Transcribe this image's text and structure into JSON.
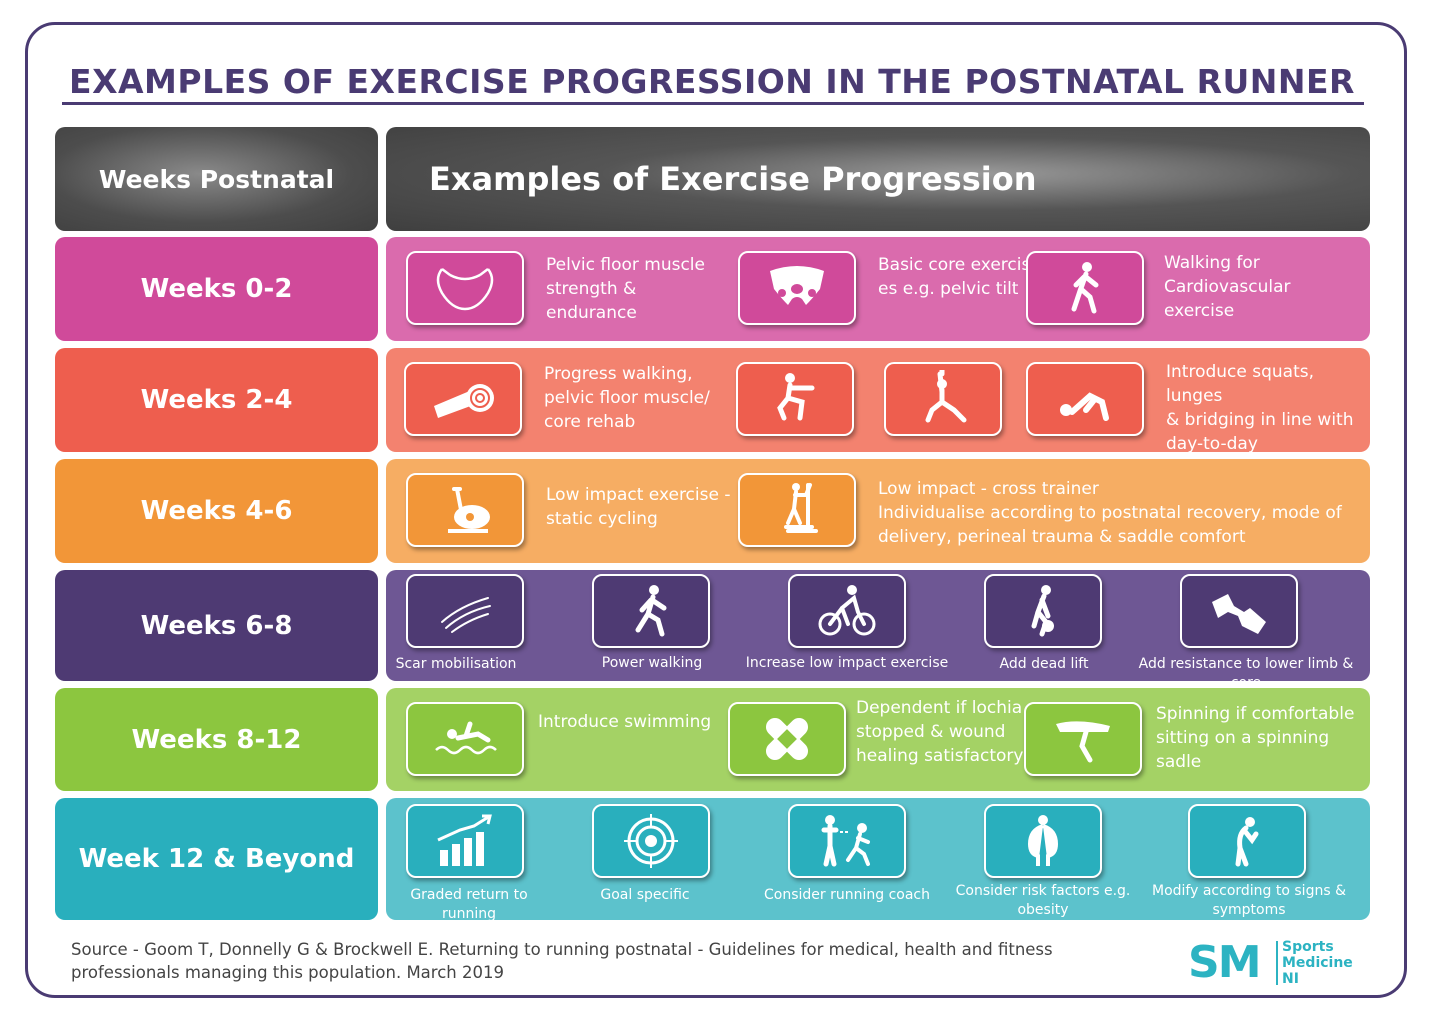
{
  "title": "EXAMPLES OF EXERCISE PROGRESSION IN THE POSTNATAL RUNNER",
  "header": {
    "left": "Weeks Postnatal",
    "right": "Examples of Exercise Progression"
  },
  "rows": [
    {
      "label": "Weeks 0-2",
      "color": "#d04a9a",
      "panel_color": "#da6bad",
      "icons": [
        "bladder-icon",
        "pelvis-icon",
        "walking-person-icon"
      ],
      "texts": [
        "Pelvic floor muscle\nstrength &\nendurance",
        "Basic core exercis-\nes e.g. pelvic tilt",
        "Walking for\nCardiovascular\nexercise"
      ]
    },
    {
      "label": "Weeks 2-4",
      "color": "#ee5e4e",
      "panel_color": "#f3826f",
      "icons": [
        "exercise-mat-icon",
        "squat-icon",
        "lunge-icon",
        "bridging-icon"
      ],
      "texts": [
        "Progress walking,\npelvic floor muscle/\ncore rehab",
        "Introduce squats, lunges\n& bridging in line with\nday-to-day requirements"
      ]
    },
    {
      "label": "Weeks 4-6",
      "color": "#f29638",
      "panel_color": "#f6ad63",
      "icons": [
        "exercise-bike-icon",
        "cross-trainer-icon"
      ],
      "texts": [
        "Low impact exercise -\nstatic cycling",
        "Low impact - cross trainer\nIndividualise according to postnatal recovery, mode of\ndelivery, perineal trauma & saddle comfort"
      ]
    },
    {
      "label": "Weeks 6-8",
      "color": "#4e3a73",
      "panel_color": "#6e5794",
      "icons": [
        "scar-icon",
        "power-walking-icon",
        "cyclist-icon",
        "dead-lift-icon",
        "dumbbell-icon"
      ],
      "captions": [
        "Scar mobilisation",
        "Power walking",
        "Increase low impact exercise",
        "Add dead lift",
        "Add resistance to lower limb & core"
      ]
    },
    {
      "label": "Weeks 8-12",
      "color": "#8cc63f",
      "panel_color": "#a4d265",
      "icons": [
        "swimmer-icon",
        "bandage-icon",
        "spinning-saddle-icon"
      ],
      "texts": [
        "Introduce swimming",
        "Dependent if lochia\nstopped & wound\nhealing satisfactory",
        "Spinning if comfortable\nsitting on a spinning sadle"
      ]
    },
    {
      "label": "Week 12 & Beyond",
      "color": "#29afbd",
      "panel_color": "#5cc2cc",
      "icons": [
        "growth-chart-icon",
        "target-icon",
        "coach-icon",
        "risk-factors-icon",
        "symptoms-icon"
      ],
      "captions": [
        "Graded return to running",
        "Goal specific",
        "Consider running coach",
        "Consider risk factors e.g.\nobesity",
        "Modify according to signs &\nsymptoms"
      ]
    }
  ],
  "source": "Source - Goom T, Donnelly G & Brockwell E. Returning to running postnatal - Guidelines for medical, health and fitness professionals managing this population. March 2019",
  "logo": {
    "mark": "SM",
    "line1": "Sports",
    "line2": "Medicine",
    "line3": "NI"
  }
}
